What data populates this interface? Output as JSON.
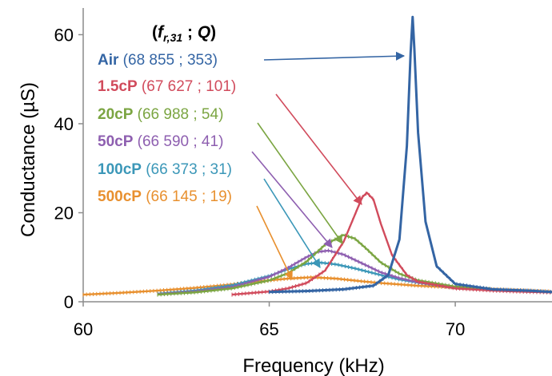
{
  "chart_data": {
    "type": "line",
    "xlabel": "Frequency (kHz)",
    "ylabel": "Conductance (µS)",
    "xlim": [
      60,
      72.6
    ],
    "ylim": [
      0,
      66
    ],
    "xticks": [
      "60",
      "65",
      "70"
    ],
    "xtick_values": [
      60,
      65,
      70
    ],
    "yticks": [
      "0",
      "20",
      "40",
      "60"
    ],
    "ytick_values": [
      0,
      20,
      40,
      60
    ],
    "legend_header": {
      "open": "(",
      "f": "f",
      "sub": "r,31",
      "sep": " ; ",
      "q": "Q",
      "close": ")"
    },
    "series": [
      {
        "name": "Air",
        "annotation": "(68 855 ; 353)",
        "color": "#3465a4",
        "peak": {
          "x": 68.855,
          "y": 64
        },
        "x": [
          65.0,
          66.0,
          67.0,
          67.8,
          68.2,
          68.5,
          68.7,
          68.8,
          68.855,
          68.9,
          69.0,
          69.2,
          69.5,
          70.0,
          71.0,
          72.0,
          72.6
        ],
        "y": [
          2.2,
          2.4,
          2.8,
          3.6,
          6.0,
          14.0,
          35.0,
          56.0,
          64.0,
          57.0,
          38.0,
          18.0,
          8.0,
          4.0,
          2.8,
          2.5,
          2.2
        ]
      },
      {
        "name": "1.5cP",
        "annotation": "(67 627 ; 101)",
        "color": "#d14b5c",
        "peak": {
          "x": 67.627,
          "y": 24.5
        },
        "x": [
          64.0,
          65.0,
          65.5,
          66.0,
          66.5,
          67.0,
          67.3,
          67.5,
          67.627,
          67.8,
          68.0,
          68.3,
          68.7,
          69.0,
          70.0,
          71.0,
          72.0,
          72.6
        ],
        "y": [
          1.6,
          2.3,
          3.0,
          4.2,
          7.0,
          13.5,
          19.5,
          23.5,
          24.5,
          23.0,
          17.5,
          10.5,
          6.0,
          4.5,
          3.0,
          2.5,
          2.2,
          2.1
        ]
      },
      {
        "name": "20cP",
        "annotation": "(66 988 ; 54)",
        "color": "#7ba542",
        "peak": {
          "x": 66.988,
          "y": 15
        },
        "x": [
          62.0,
          63.0,
          64.0,
          65.0,
          65.5,
          66.0,
          66.5,
          66.988,
          67.3,
          67.6,
          68.0,
          68.5,
          69.0,
          70.0,
          71.0
        ],
        "y": [
          1.6,
          2.1,
          3.0,
          4.8,
          6.4,
          9.0,
          12.8,
          15.0,
          14.2,
          12.0,
          8.8,
          6.3,
          4.8,
          3.4,
          2.8
        ]
      },
      {
        "name": "50cP",
        "annotation": "(66 590 ; 41)",
        "color": "#8e5fb0",
        "peak": {
          "x": 66.59,
          "y": 11.5
        },
        "x": [
          62.0,
          63.0,
          64.0,
          65.0,
          65.5,
          66.0,
          66.3,
          66.59,
          67.0,
          67.5,
          68.0,
          68.5,
          69.0,
          70.0,
          71.0
        ],
        "y": [
          1.7,
          2.3,
          3.3,
          5.6,
          7.6,
          10.0,
          11.2,
          11.5,
          10.6,
          8.6,
          6.6,
          5.3,
          4.4,
          3.3,
          2.8
        ]
      },
      {
        "name": "100cP",
        "annotation": "(66 373 ; 31)",
        "color": "#3b97b8",
        "peak": {
          "x": 66.373,
          "y": 8.8
        },
        "x": [
          62.0,
          63.0,
          64.0,
          65.0,
          65.5,
          66.0,
          66.373,
          66.8,
          67.3,
          68.0,
          68.5,
          69.0,
          70.0,
          71.0
        ],
        "y": [
          1.8,
          2.5,
          3.7,
          5.8,
          7.3,
          8.5,
          8.8,
          8.4,
          7.5,
          6.0,
          5.0,
          4.3,
          3.2,
          2.8
        ]
      },
      {
        "name": "500cP",
        "annotation": "(66 145 ; 19)",
        "color": "#e8902f",
        "peak": {
          "x": 66.145,
          "y": 5.5
        },
        "x": [
          60.0,
          61.0,
          62.0,
          63.0,
          64.0,
          65.0,
          65.5,
          66.145,
          66.8,
          67.5,
          68.0,
          69.0,
          70.0,
          71.0,
          72.0,
          72.6
        ],
        "y": [
          1.6,
          2.0,
          2.5,
          3.1,
          3.9,
          4.8,
          5.2,
          5.5,
          5.2,
          4.6,
          4.2,
          3.6,
          3.2,
          2.8,
          2.5,
          2.3
        ]
      }
    ]
  }
}
